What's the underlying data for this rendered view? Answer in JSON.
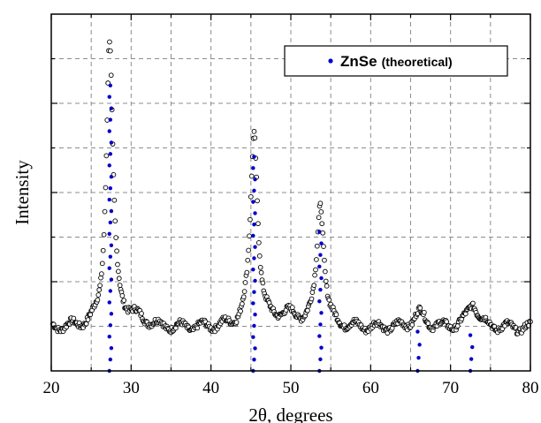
{
  "chart_data": {
    "type": "scatter",
    "title": "",
    "xlabel": "2θ, degrees",
    "ylabel": "Intensity",
    "xlim": [
      20,
      80
    ],
    "ylim": [
      0,
      100
    ],
    "xticks": [
      20,
      30,
      40,
      50,
      60,
      70,
      80
    ],
    "y_tick_labels_shown": false,
    "grid": true,
    "legend": {
      "placement": "top-right",
      "entries": [
        {
          "name": "ZnSe",
          "suffix": "(theoretical)",
          "marker": "dot",
          "color": "#0000cc"
        }
      ]
    },
    "series": [
      {
        "label": "",
        "marker": "open-circle",
        "color": "#000000",
        "peaks": [
          {
            "x": 27.3,
            "height": 80,
            "width": 0.5
          },
          {
            "x": 45.4,
            "height": 55,
            "width": 0.55
          },
          {
            "x": 53.7,
            "height": 35,
            "width": 0.55
          },
          {
            "x": 66.1,
            "height": 4,
            "width": 0.9
          },
          {
            "x": 72.8,
            "height": 7,
            "width": 0.8
          }
        ],
        "baseline": 12,
        "x_step": 0.1
      },
      {
        "name": "ZnSe (theoretical)",
        "marker": "dot",
        "color": "#0000cc",
        "sticks": [
          {
            "x": 27.4,
            "top": 80
          },
          {
            "x": 45.4,
            "top": 60
          },
          {
            "x": 53.7,
            "top": 39
          },
          {
            "x": 66.0,
            "top": 11
          },
          {
            "x": 72.6,
            "top": 10
          }
        ]
      }
    ]
  }
}
